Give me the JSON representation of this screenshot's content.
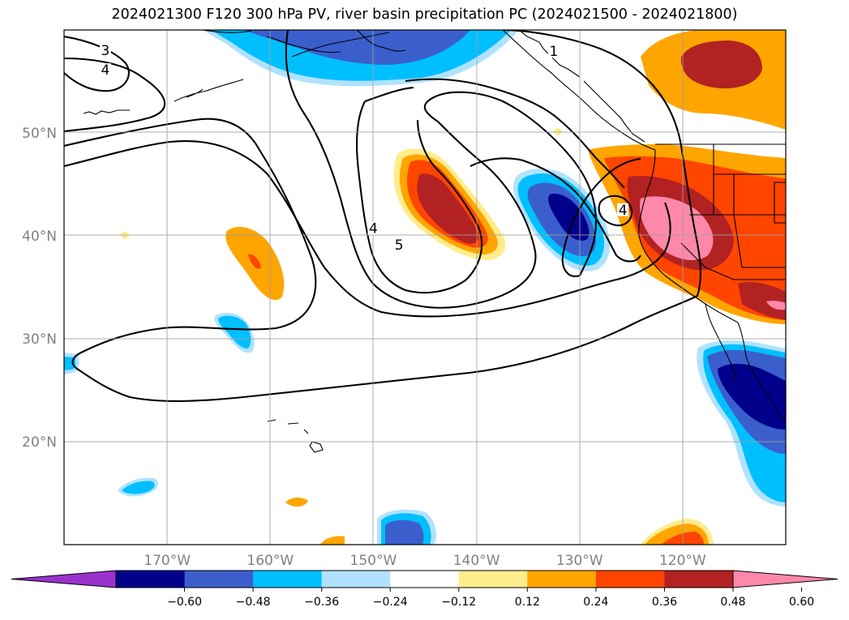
{
  "title": "2024021300 F120 300 hPa PV, river basin precipitation PC (2024021500 - 2024021800)",
  "map": {
    "extent": {
      "lon_min": -180,
      "lon_max": -110,
      "lat_min": 10,
      "lat_max": 60
    },
    "lat_labels": [
      {
        "lat": 50,
        "label": "50°N"
      },
      {
        "lat": 40,
        "label": "40°N"
      },
      {
        "lat": 30,
        "label": "30°N"
      },
      {
        "lat": 20,
        "label": "20°N"
      }
    ],
    "lon_labels": [
      {
        "lon": -170,
        "label": "170°W"
      },
      {
        "lon": -160,
        "label": "160°W"
      },
      {
        "lon": -150,
        "label": "150°W"
      },
      {
        "lon": -140,
        "label": "140°W"
      },
      {
        "lon": -130,
        "label": "130°W"
      },
      {
        "lon": -120,
        "label": "120°W"
      }
    ],
    "grid": true,
    "contour_labels": [
      {
        "text": "3",
        "lon": -176,
        "lat": 57.8
      },
      {
        "text": "4",
        "lon": -176,
        "lat": 55.9
      },
      {
        "text": "1",
        "lon": -132.5,
        "lat": 57.7
      },
      {
        "text": "4",
        "lon": -150,
        "lat": 40.5
      },
      {
        "text": "5",
        "lon": -147.5,
        "lat": 38.9
      },
      {
        "text": "4",
        "lon": -125.8,
        "lat": 42.3
      }
    ]
  },
  "colorbar": {
    "colors": [
      "#9932cc",
      "#00008b",
      "#3a5fcd",
      "#00bfff",
      "#b0e2ff",
      "#ffffff",
      "#ffec8b",
      "#ffa500",
      "#ff4500",
      "#b22222",
      "#ff88aa"
    ],
    "ticks": [
      "−0.60",
      "−0.48",
      "−0.36",
      "−0.24",
      "−0.12",
      "0.12",
      "0.24",
      "0.36",
      "0.48",
      "0.60"
    ]
  }
}
